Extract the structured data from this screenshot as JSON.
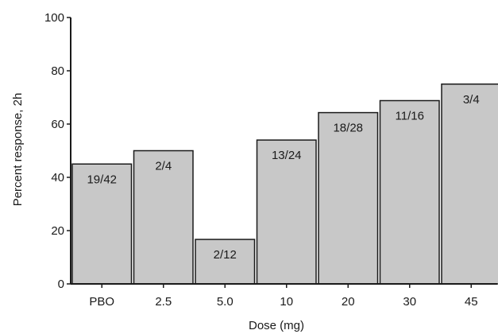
{
  "chart_data": {
    "type": "bar",
    "title": "",
    "xlabel": "Dose (mg)",
    "ylabel": "Percent response, 2h",
    "ylim": [
      0,
      100
    ],
    "yticks": [
      0,
      20,
      40,
      60,
      80,
      100
    ],
    "grid": false,
    "categories": [
      "PBO",
      "2.5",
      "5.0",
      "10",
      "20",
      "30",
      "45"
    ],
    "values": [
      45,
      50,
      16.7,
      54,
      64.3,
      68.8,
      75
    ],
    "bar_labels": [
      "19/42",
      "2/4",
      "2/12",
      "13/24",
      "18/28",
      "11/16",
      "3/4"
    ],
    "colors": {
      "bar_fill": "#c8c8c8",
      "bar_stroke": "#1a1a1a",
      "axis": "#1a1a1a"
    }
  }
}
